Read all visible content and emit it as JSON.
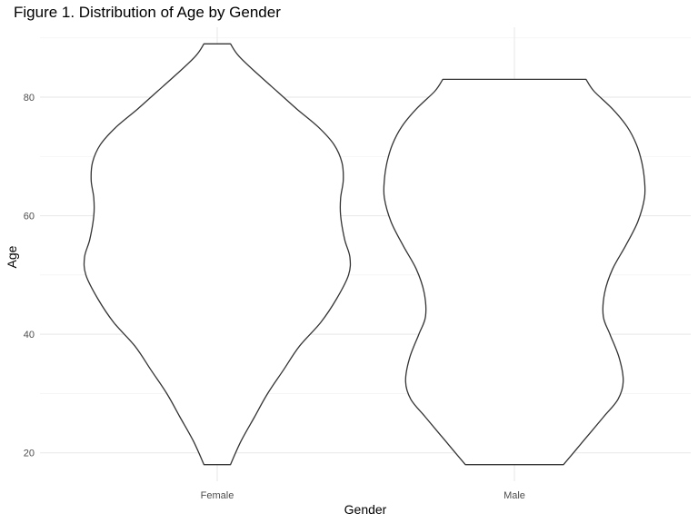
{
  "chart_data": {
    "type": "violin",
    "title": "Figure 1. Distribution of Age by Gender",
    "xlabel": "Gender",
    "ylabel": "Age",
    "categories": [
      "Female",
      "Male"
    ],
    "ylim": [
      15.2,
      91.8
    ],
    "yticks": [
      20,
      40,
      60,
      80
    ],
    "grid": true,
    "legend": "none",
    "colors": {
      "outline": "#333333",
      "fill": "#ffffff",
      "grid_major": "#ebebeb",
      "grid_minor": "#f2f2f2"
    },
    "series": [
      {
        "name": "Female",
        "range": [
          18,
          89
        ],
        "density_profile": [
          [
            18,
            0.1
          ],
          [
            22,
            0.18
          ],
          [
            26,
            0.28
          ],
          [
            30,
            0.38
          ],
          [
            34,
            0.5
          ],
          [
            38,
            0.62
          ],
          [
            42,
            0.78
          ],
          [
            46,
            0.9
          ],
          [
            50,
            0.99
          ],
          [
            53,
            1.0
          ],
          [
            56,
            0.96
          ],
          [
            60,
            0.93
          ],
          [
            63,
            0.93
          ],
          [
            66,
            0.95
          ],
          [
            69,
            0.94
          ],
          [
            72,
            0.88
          ],
          [
            75,
            0.76
          ],
          [
            78,
            0.6
          ],
          [
            81,
            0.45
          ],
          [
            84,
            0.3
          ],
          [
            87,
            0.16
          ],
          [
            89,
            0.1
          ]
        ]
      },
      {
        "name": "Male",
        "range": [
          18,
          83
        ],
        "density_profile": [
          [
            18,
            0.37
          ],
          [
            22,
            0.52
          ],
          [
            26,
            0.67
          ],
          [
            29,
            0.78
          ],
          [
            32,
            0.82
          ],
          [
            36,
            0.79
          ],
          [
            40,
            0.72
          ],
          [
            43,
            0.67
          ],
          [
            47,
            0.68
          ],
          [
            51,
            0.74
          ],
          [
            55,
            0.84
          ],
          [
            59,
            0.93
          ],
          [
            63,
            0.98
          ],
          [
            66,
            0.98
          ],
          [
            69,
            0.96
          ],
          [
            72,
            0.92
          ],
          [
            75,
            0.85
          ],
          [
            78,
            0.74
          ],
          [
            81,
            0.6
          ],
          [
            83,
            0.54
          ]
        ]
      }
    ]
  }
}
